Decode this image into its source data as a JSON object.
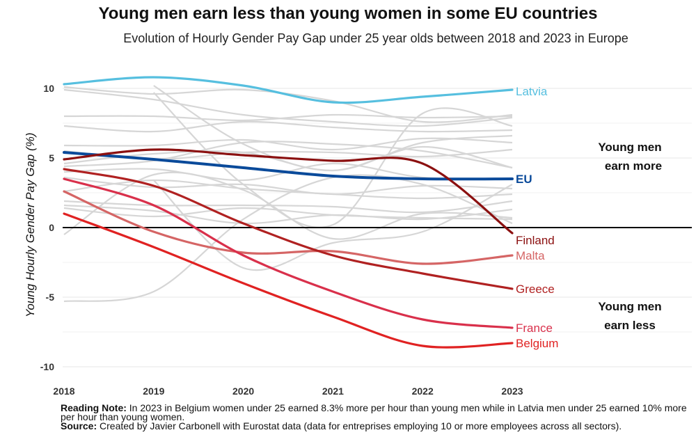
{
  "header": {
    "title": "Young men earn less than young women in some EU countries",
    "subtitle": "Evolution of Hourly Gender Pay Gap under 25 year olds between 2018 and 2023 in Europe"
  },
  "annotations": {
    "upper_line1": "Young men",
    "upper_line2": "earn more",
    "lower_line1": "Young men",
    "lower_line2": "earn less"
  },
  "notes": {
    "reading_label": "Reading Note:",
    "reading_text": "In 2023 in Belgium women under 25 earned 8.3% more per hour than young men while in Latvia men under 25 earned 10% more per hour than young women.",
    "source_label": "Source:",
    "source_text": "Created by Javier Carbonell with Eurostat data (data for entreprises employing 10 or more employees across all sectors)."
  },
  "colors": {
    "background_lines": "#d6d6d6",
    "zero_line": "#000000",
    "grid": "#ececec"
  },
  "chart_data": {
    "type": "line",
    "title": "Young men earn less than young women in some EU countries",
    "subtitle": "Evolution of Hourly Gender Pay Gap under 25 year olds between 2018 and 2023 in Europe",
    "xlabel": "",
    "ylabel": "Young Hourly Gender Pay Gap (%)",
    "x": [
      2018,
      2019,
      2020,
      2021,
      2022,
      2023
    ],
    "x_tick_labels": [
      "2018",
      "2019",
      "2020",
      "2021",
      "2022",
      "2023"
    ],
    "y_ticks": [
      10,
      5,
      0,
      -5,
      -10
    ],
    "y_tick_labels": [
      "10",
      "5",
      "0",
      "-5",
      "-10"
    ],
    "ylim": [
      -10.5,
      11
    ],
    "grid": true,
    "legend": "direct labels at line ends",
    "highlighted_series": [
      {
        "name": "Latvia",
        "color": "#56bfdf",
        "values": [
          10.3,
          10.8,
          10.2,
          9.0,
          9.4,
          9.9
        ]
      },
      {
        "name": "EU",
        "color": "#0a4a9a",
        "values": [
          5.4,
          4.9,
          4.3,
          3.7,
          3.5,
          3.5
        ]
      },
      {
        "name": "Finland",
        "color": "#8b1010",
        "values": [
          4.9,
          5.6,
          5.2,
          4.8,
          4.6,
          -0.4
        ]
      },
      {
        "name": "Malta",
        "color": "#d56565",
        "values": [
          2.6,
          -0.3,
          -1.8,
          -1.7,
          -2.6,
          -2.0
        ]
      },
      {
        "name": "Greece",
        "color": "#b02121",
        "values": [
          4.2,
          3.0,
          0.3,
          -2.0,
          -3.3,
          -4.4
        ]
      },
      {
        "name": "France",
        "color": "#d9304b",
        "values": [
          3.5,
          1.6,
          -2.0,
          -4.6,
          -6.6,
          -7.2
        ]
      },
      {
        "name": "Belgium",
        "color": "#e02222",
        "values": [
          1.0,
          -1.4,
          -4.0,
          -6.4,
          -8.5,
          -8.3
        ]
      }
    ],
    "background_series": [
      {
        "values": [
          10.1,
          9.6,
          9.9,
          9.1,
          7.6,
          8.1
        ]
      },
      {
        "values": [
          9.9,
          9.2,
          8.1,
          7.6,
          7.3,
          7.9
        ]
      },
      {
        "values": [
          8.0,
          8.0,
          7.7,
          8.1,
          7.9,
          8.0
        ]
      },
      {
        "values": [
          7.3,
          6.9,
          7.6,
          7.2,
          6.9,
          7.0
        ]
      },
      {
        "values": [
          5.9,
          5.9,
          6.3,
          5.6,
          6.4,
          6.1
        ]
      },
      {
        "values": [
          5.5,
          4.9,
          5.4,
          5.4,
          5.1,
          5.6
        ]
      },
      {
        "values": [
          4.6,
          5.3,
          5.4,
          4.1,
          5.8,
          4.3
        ]
      },
      {
        "values": [
          4.4,
          4.8,
          6.1,
          6.0,
          5.5,
          4.3
        ]
      },
      {
        "values": [
          4.0,
          4.2,
          3.4,
          4.6,
          3.6,
          3.5
        ]
      },
      {
        "values": [
          3.6,
          2.9,
          3.1,
          2.4,
          3.0,
          2.8
        ]
      },
      {
        "values": [
          2.6,
          3.4,
          2.8,
          2.4,
          2.1,
          2.4
        ]
      },
      {
        "values": [
          1.9,
          1.6,
          1.6,
          1.5,
          1.1,
          1.9
        ]
      },
      {
        "values": [
          1.6,
          1.2,
          0.3,
          0.9,
          0.6,
          1.3
        ]
      },
      {
        "values": [
          1.4,
          0.8,
          1.4,
          0.9,
          0.7,
          0.6
        ]
      },
      {
        "values": [
          -0.5,
          3.8,
          2.7,
          -0.8,
          1.0,
          0.7
        ]
      },
      {
        "values": [
          -5.3,
          -4.6,
          0.6,
          3.6,
          3.1,
          0.3
        ]
      },
      {
        "values": [
          null,
          10.2,
          6.0,
          4.1,
          6.1,
          6.6
        ]
      },
      {
        "values": [
          null,
          9.7,
          3.1,
          0.2,
          8.2,
          7.3
        ]
      },
      {
        "values": [
          null,
          3.4,
          -2.9,
          -1.1,
          -0.3,
          3.1
        ]
      }
    ]
  }
}
